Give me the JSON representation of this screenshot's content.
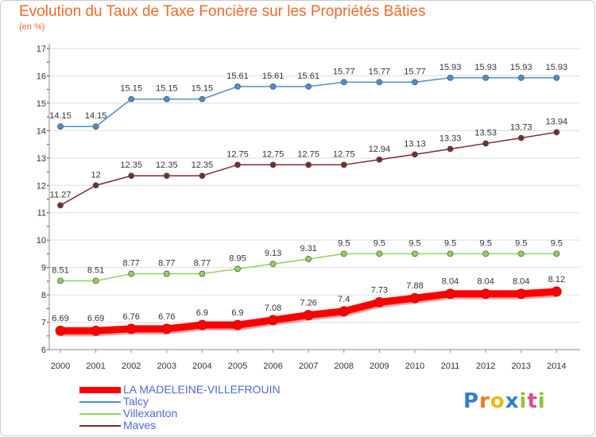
{
  "header": {
    "title": "Evolution du Taux de Taxe Foncière sur les Propriétés Bâties",
    "unit": "(en %)"
  },
  "logo": {
    "text": "Proxiti"
  },
  "chart_data": {
    "type": "line",
    "title": "Evolution du Taux de Taxe Foncière sur les Propriétés Bâties",
    "ylabel": "(en %)",
    "xlabel": "",
    "x": [
      "2000",
      "2001",
      "2002",
      "2003",
      "2004",
      "2005",
      "2006",
      "2007",
      "2008",
      "2009",
      "2010",
      "2011",
      "2012",
      "2013",
      "2014"
    ],
    "ylim": [
      6,
      17
    ],
    "yticks": [
      6,
      7,
      8,
      9,
      10,
      11,
      12,
      13,
      14,
      15,
      16,
      17
    ],
    "grid": "horizontal",
    "legend_position": "bottom-left",
    "series": [
      {
        "name": "LA MADELEINE-VILLEFROUIN",
        "color": "#ff0000",
        "labels": [
          "6.69",
          "6.69",
          "6.76",
          "6.76",
          "6.9",
          "6.9",
          "7.08",
          "7.26",
          "7.4",
          "7.73",
          "7.88",
          "8.04",
          "8.04",
          "8.04",
          "8.12"
        ],
        "values": [
          6.69,
          6.69,
          6.76,
          6.76,
          6.9,
          6.9,
          7.08,
          7.26,
          7.4,
          7.73,
          7.88,
          8.04,
          8.04,
          8.04,
          8.12
        ]
      },
      {
        "name": "Talcy",
        "color": "#4e8ed0",
        "labels": [
          "14.15",
          "14.15",
          "15.15",
          "15.15",
          "15.15",
          "15.61",
          "15.61",
          "15.61",
          "15.77",
          "15.77",
          "15.77",
          "15.93",
          "15.93",
          "15.93",
          "15.93"
        ],
        "values": [
          14.15,
          14.15,
          15.15,
          15.15,
          15.15,
          15.61,
          15.61,
          15.61,
          15.77,
          15.77,
          15.77,
          15.93,
          15.93,
          15.93,
          15.93
        ]
      },
      {
        "name": "Villexanton",
        "color": "#8fd45c",
        "labels": [
          "8.51",
          "8.51",
          "8.77",
          "8.77",
          "8.77",
          "8.95",
          "9.13",
          "9.31",
          "9.5",
          "9.5",
          "9.5",
          "9.5",
          "9.5",
          "9.5",
          "9.5"
        ],
        "values": [
          8.51,
          8.51,
          8.77,
          8.77,
          8.77,
          8.95,
          9.13,
          9.31,
          9.5,
          9.5,
          9.5,
          9.5,
          9.5,
          9.5,
          9.5
        ]
      },
      {
        "name": "Maves",
        "color": "#7a2a2a",
        "labels": [
          "11.27",
          "12",
          "12.35",
          "12.35",
          "12.35",
          "12.75",
          "12.75",
          "12.75",
          "12.75",
          "12.94",
          "13.13",
          "13.33",
          "13.53",
          "13.73",
          "13.94"
        ],
        "values": [
          11.27,
          12,
          12.35,
          12.35,
          12.35,
          12.75,
          12.75,
          12.75,
          12.75,
          12.94,
          13.13,
          13.33,
          13.53,
          13.73,
          13.94
        ]
      }
    ]
  }
}
